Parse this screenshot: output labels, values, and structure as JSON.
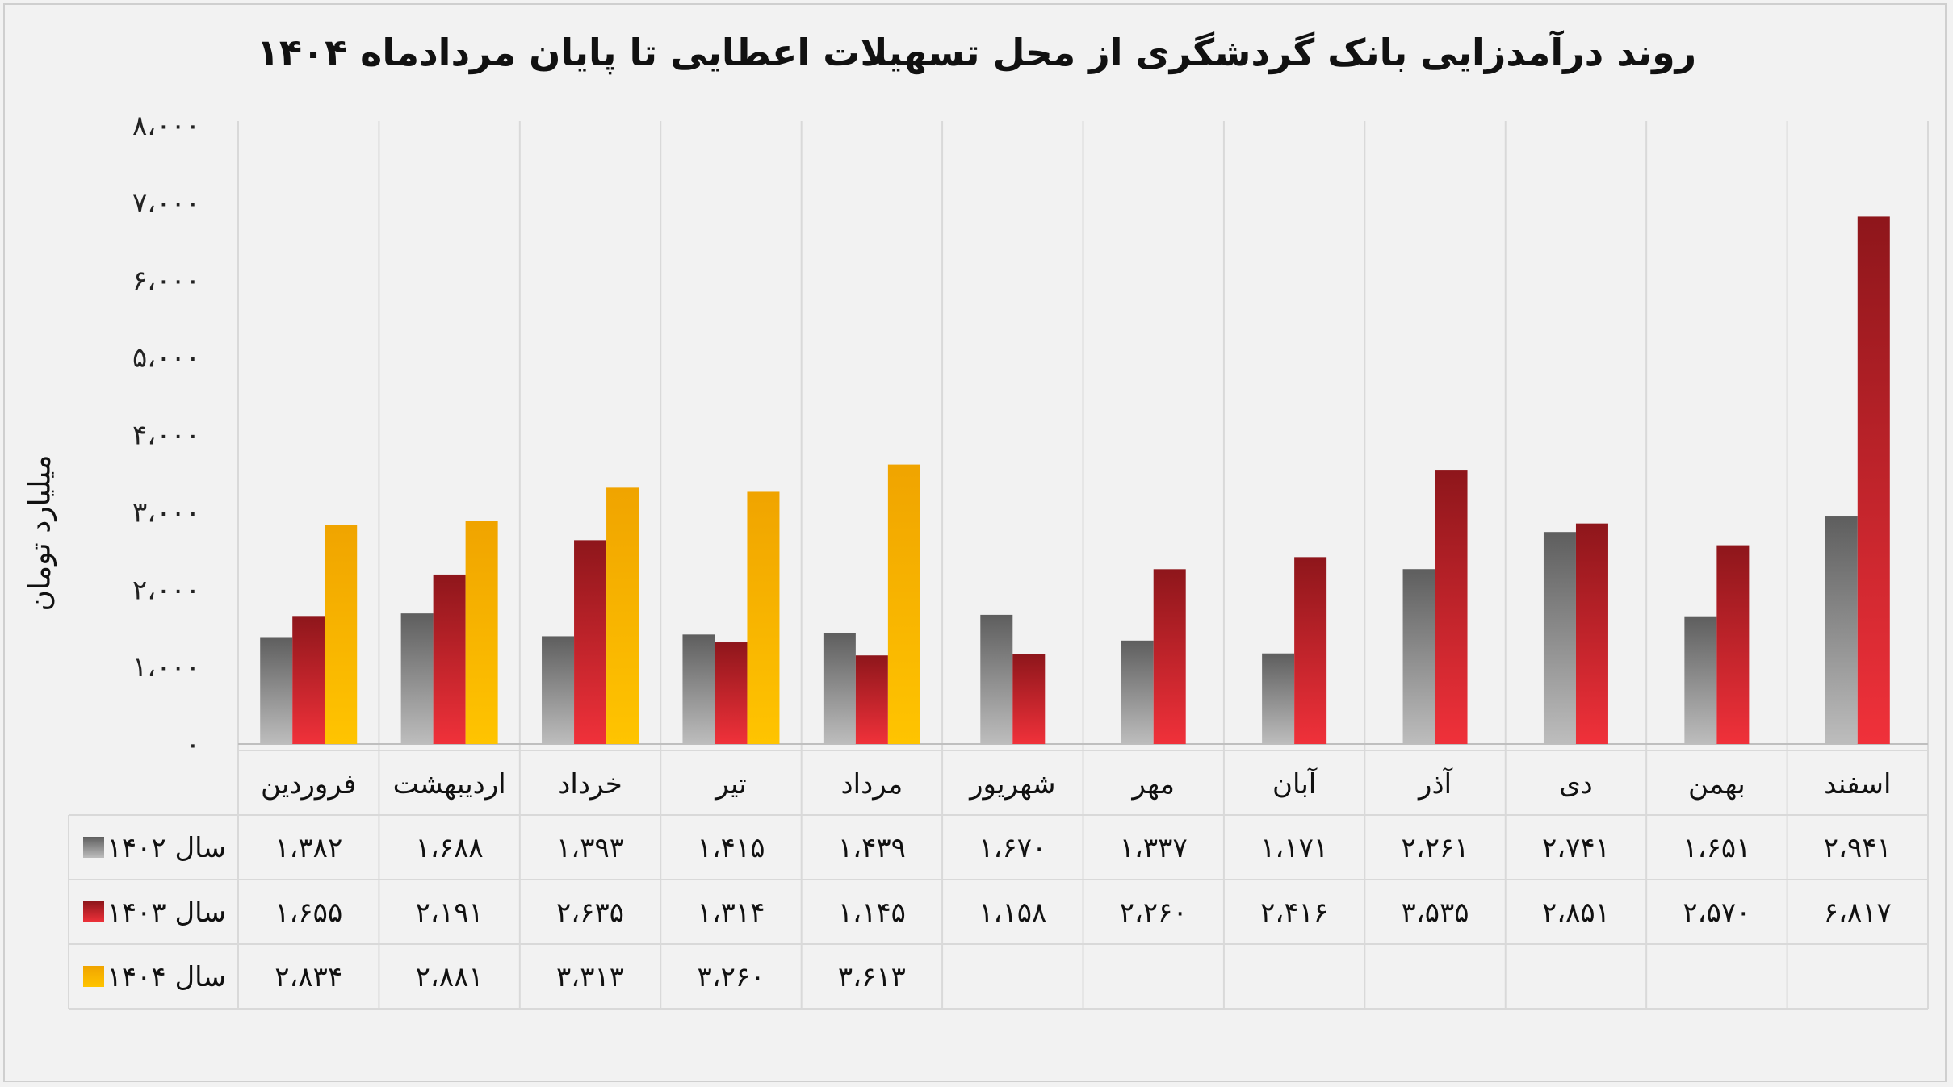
{
  "colors": {
    "s1402_top": "#5e5e5e",
    "s1402_bottom": "#bdbdbd",
    "s1403_top": "#8e161b",
    "s1403_bottom": "#f0313a",
    "s1404_top": "#f0a400",
    "s1404_bottom": "#ffc400",
    "grid": "#d9d9d9",
    "background": "#f2f2f2"
  },
  "chart_data": {
    "type": "bar",
    "title": "روند درآمدزایی بانک گردشگری از محل تسهیلات اعطایی تا پایان مردادماه ۱۴۰۴",
    "ylabel": "میلیارد تومان",
    "xlabel": "",
    "ylim": [
      0,
      8000
    ],
    "yticks": [
      0,
      1000,
      2000,
      3000,
      4000,
      5000,
      6000,
      7000,
      8000
    ],
    "ytick_labels": [
      "۰",
      "۱،۰۰۰",
      "۲،۰۰۰",
      "۳،۰۰۰",
      "۴،۰۰۰",
      "۵،۰۰۰",
      "۶،۰۰۰",
      "۷،۰۰۰",
      "۸،۰۰۰"
    ],
    "categories": [
      "فروردین",
      "اردیبهشت",
      "خرداد",
      "تیر",
      "مرداد",
      "شهریور",
      "مهر",
      "آبان",
      "آذر",
      "دی",
      "بهمن",
      "اسفند"
    ],
    "series": [
      {
        "name": "سال ۱۴۰۲",
        "values": [
          1382,
          1688,
          1393,
          1415,
          1439,
          1670,
          1337,
          1171,
          2261,
          2741,
          1651,
          2941
        ],
        "labels": [
          "۱،۳۸۲",
          "۱،۶۸۸",
          "۱،۳۹۳",
          "۱،۴۱۵",
          "۱،۴۳۹",
          "۱،۶۷۰",
          "۱،۳۳۷",
          "۱،۱۷۱",
          "۲،۲۶۱",
          "۲،۷۴۱",
          "۱،۶۵۱",
          "۲،۹۴۱"
        ]
      },
      {
        "name": "سال ۱۴۰۳",
        "values": [
          1655,
          2191,
          2635,
          1314,
          1145,
          1158,
          2260,
          2416,
          3535,
          2851,
          2570,
          6817
        ],
        "labels": [
          "۱،۶۵۵",
          "۲،۱۹۱",
          "۲،۶۳۵",
          "۱،۳۱۴",
          "۱،۱۴۵",
          "۱،۱۵۸",
          "۲،۲۶۰",
          "۲،۴۱۶",
          "۳،۵۳۵",
          "۲،۸۵۱",
          "۲،۵۷۰",
          "۶،۸۱۷"
        ]
      },
      {
        "name": "سال ۱۴۰۴",
        "values": [
          2834,
          2881,
          3313,
          3260,
          3613,
          null,
          null,
          null,
          null,
          null,
          null,
          null
        ],
        "labels": [
          "۲،۸۳۴",
          "۲،۸۸۱",
          "۳،۳۱۳",
          "۳،۲۶۰",
          "۳،۶۱۳",
          "",
          "",
          "",
          "",
          "",
          "",
          ""
        ]
      }
    ],
    "legend": "data-table-left"
  }
}
